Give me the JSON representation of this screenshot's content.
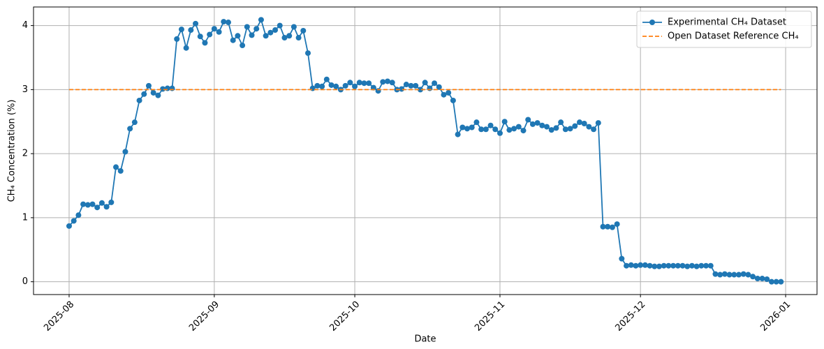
{
  "chart_data": {
    "type": "line",
    "xlabel": "Date",
    "ylabel": "CH₄ Concentration (%)",
    "xlim": [
      -7.6,
      159.7
    ],
    "ylim": [
      -0.2,
      4.29
    ],
    "xticks": [
      {
        "value": 0,
        "label": "2025-08"
      },
      {
        "value": 31,
        "label": "2025-09"
      },
      {
        "value": 61,
        "label": "2025-10"
      },
      {
        "value": 92,
        "label": "2025-11"
      },
      {
        "value": 122,
        "label": "2025-12"
      },
      {
        "value": 153,
        "label": "2026-01"
      }
    ],
    "yticks": [
      0,
      1,
      2,
      3,
      4
    ],
    "grid": true,
    "legend": "upper right",
    "series": [
      {
        "name": "Experimental CH₄ Dataset",
        "color": "#1f77b4",
        "style": "solid",
        "marker": true,
        "x": [
          0,
          1,
          2,
          3,
          4,
          5,
          6,
          7,
          8,
          9,
          10,
          11,
          12,
          13,
          14,
          15,
          16,
          17,
          18,
          19,
          20,
          21,
          22,
          23,
          24,
          25,
          26,
          27,
          28,
          29,
          30,
          31,
          32,
          33,
          34,
          35,
          36,
          37,
          38,
          39,
          40,
          41,
          42,
          43,
          44,
          45,
          46,
          47,
          48,
          49,
          50,
          51,
          52,
          53,
          54,
          55,
          56,
          57,
          58,
          59,
          60,
          61,
          62,
          63,
          64,
          65,
          66,
          67,
          68,
          69,
          70,
          71,
          72,
          73,
          74,
          75,
          76,
          77,
          78,
          79,
          80,
          81,
          82,
          83,
          84,
          85,
          86,
          87,
          88,
          89,
          90,
          91,
          92,
          93,
          94,
          95,
          96,
          97,
          98,
          99,
          100,
          101,
          102,
          103,
          104,
          105,
          106,
          107,
          108,
          109,
          110,
          111,
          112,
          113,
          114,
          115,
          116,
          117,
          118,
          119,
          120,
          121,
          122,
          123,
          124,
          125,
          126,
          127,
          128,
          129,
          130,
          131,
          132,
          133,
          134,
          135,
          136,
          137,
          138,
          139,
          140,
          141,
          142,
          143,
          144,
          145,
          146,
          147,
          148,
          149,
          150,
          151,
          152
        ],
        "values": [
          0.87,
          0.95,
          1.04,
          1.21,
          1.2,
          1.21,
          1.16,
          1.23,
          1.17,
          1.24,
          1.79,
          1.73,
          2.03,
          2.39,
          2.49,
          2.83,
          2.93,
          3.06,
          2.95,
          2.91,
          3.01,
          3.02,
          3.02,
          3.79,
          3.94,
          3.65,
          3.93,
          4.03,
          3.83,
          3.73,
          3.86,
          3.95,
          3.9,
          4.06,
          4.05,
          3.77,
          3.84,
          3.69,
          3.98,
          3.85,
          3.95,
          4.09,
          3.84,
          3.89,
          3.93,
          4.0,
          3.81,
          3.84,
          3.98,
          3.81,
          3.92,
          3.57,
          3.02,
          3.06,
          3.05,
          3.16,
          3.07,
          3.05,
          3.0,
          3.06,
          3.11,
          3.05,
          3.11,
          3.1,
          3.1,
          3.03,
          2.98,
          3.12,
          3.13,
          3.11,
          3.0,
          3.01,
          3.08,
          3.06,
          3.06,
          3.0,
          3.11,
          3.02,
          3.1,
          3.04,
          2.92,
          2.95,
          2.83,
          2.3,
          2.41,
          2.39,
          2.41,
          2.49,
          2.38,
          2.38,
          2.44,
          2.38,
          2.32,
          2.5,
          2.37,
          2.39,
          2.42,
          2.36,
          2.53,
          2.46,
          2.48,
          2.44,
          2.42,
          2.37,
          2.4,
          2.49,
          2.38,
          2.39,
          2.43,
          2.49,
          2.47,
          2.42,
          2.38,
          2.48,
          0.86,
          0.86,
          0.85,
          0.9,
          0.36,
          0.25,
          0.26,
          0.25,
          0.26,
          0.26,
          0.25,
          0.24,
          0.24,
          0.25,
          0.25,
          0.25,
          0.25,
          0.25,
          0.24,
          0.25,
          0.24,
          0.25,
          0.25,
          0.25,
          0.12,
          0.11,
          0.12,
          0.11,
          0.11,
          0.11,
          0.12,
          0.11,
          0.08,
          0.05,
          0.05,
          0.04,
          0.0,
          0.0,
          0.0
        ]
      },
      {
        "name": "Open Dataset Reference CH₄",
        "color": "#ff7f0e",
        "style": "dashed",
        "marker": false,
        "x": [
          0,
          152
        ],
        "values": [
          3,
          3
        ]
      }
    ]
  }
}
